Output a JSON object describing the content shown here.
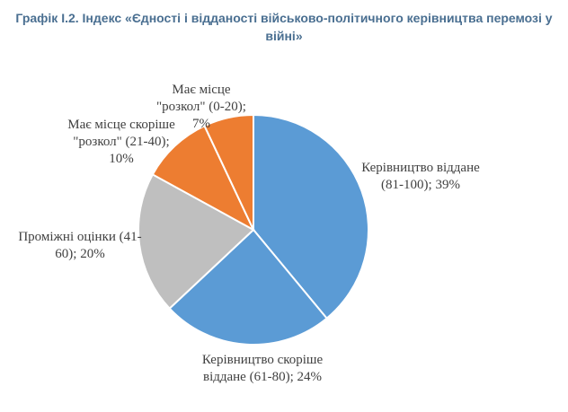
{
  "chart_data": {
    "type": "pie",
    "title": "Графік І.2. Індекс «Єдності і відданості військово-політичного керівництва перемозі у війні»",
    "categories": [
      "Керівництво віддане (81-100);",
      "Керівництво скоріше віддане (61-80);",
      "Проміжні оцінки (41-60);",
      "Має місце скоріше \"розкол\" (21-40);",
      "Має місце \"розкол\" (0-20);"
    ],
    "values": [
      39,
      24,
      20,
      10,
      7
    ],
    "value_labels": [
      "39%",
      "24%",
      "20%",
      "10%",
      "7%"
    ],
    "colors": [
      "#5b9bd5",
      "#5b9bd5",
      "#bfbfbf",
      "#ed7d31",
      "#ed7d31"
    ]
  }
}
